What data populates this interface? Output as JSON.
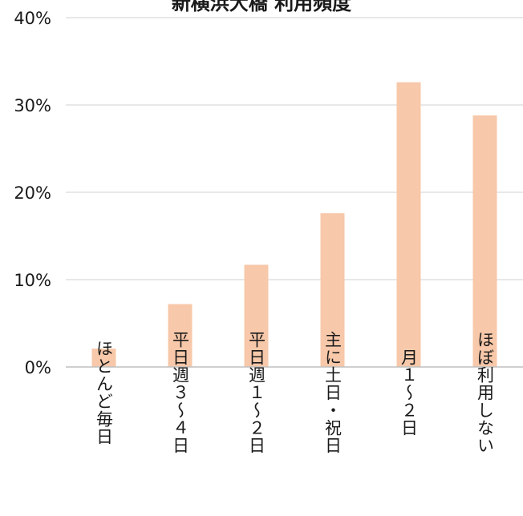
{
  "chart_data": {
    "type": "bar",
    "title": "新横浜大橋 利用頻度",
    "categories": [
      "ほとんど毎日",
      "平日週３～４日",
      "平日週１～２日",
      "主に土日・祝日",
      "月１～２日",
      "ほぼ利用しない"
    ],
    "values": [
      2.1,
      7.2,
      11.7,
      17.6,
      32.6,
      28.8
    ],
    "value_unit": "%",
    "ylim": [
      0,
      40
    ],
    "yticks": [
      0,
      10,
      20,
      30,
      40
    ],
    "ytick_labels": [
      "0%",
      "10%",
      "20%",
      "30%",
      "40%"
    ],
    "xlabel": "",
    "ylabel": "",
    "grid": true,
    "legend": "none",
    "bar_color": "#f7c8a9",
    "grid_color": "#d9d9d9",
    "axis_color": "#bfbfbf",
    "text_color": "#1a1a1a"
  }
}
